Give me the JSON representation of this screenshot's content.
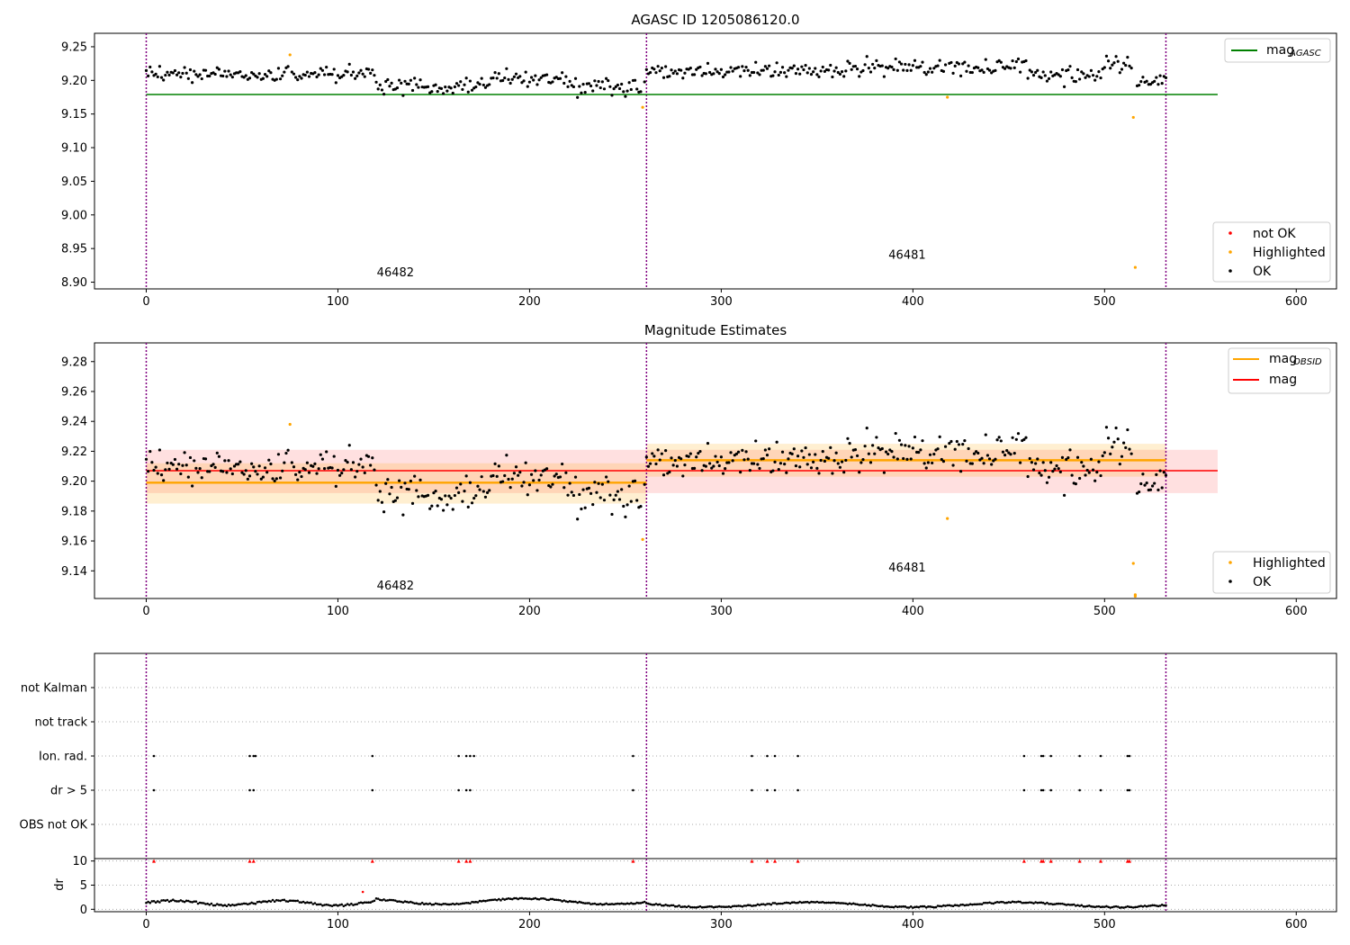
{
  "figure": {
    "title": "AGASC ID 1205086120.0"
  },
  "chart_data": [
    {
      "type": "scatter",
      "name": "agasc-mag-panel",
      "title": "AGASC ID 1205086120.0",
      "xlim": [
        -27,
        621
      ],
      "ylim": [
        8.89,
        9.27
      ],
      "xticks": [
        0,
        100,
        200,
        300,
        400,
        500,
        600
      ],
      "yticks": [
        8.9,
        8.95,
        9.0,
        9.05,
        9.1,
        9.15,
        9.2,
        9.25
      ],
      "ytick_labels": [
        "8.90",
        "8.95",
        "9.00",
        "9.05",
        "9.10",
        "9.15",
        "9.20",
        "9.25"
      ],
      "obsid_boundaries": [
        0,
        261,
        532
      ],
      "obsid_labels": [
        {
          "text": "46482",
          "x": 130,
          "y": 8.9085
        },
        {
          "text": "46481",
          "x": 397,
          "y": 8.935
        }
      ],
      "lines": [
        {
          "label": "mag",
          "sub": "AGASC",
          "color": "#008000",
          "x": [
            0,
            559
          ],
          "y": [
            9.179,
            9.179
          ]
        }
      ],
      "highlighted": [
        [
          75,
          9.238
        ],
        [
          259,
          9.16
        ],
        [
          418,
          9.175
        ],
        [
          515,
          9.145
        ],
        [
          516,
          8.922
        ]
      ],
      "not_ok": [],
      "legend": {
        "lines": [
          {
            "label": "mag",
            "sub": "AGASC",
            "color": "#008000"
          }
        ],
        "points": [
          {
            "label": "not OK",
            "color": "#ff0000"
          },
          {
            "label": "Highlighted",
            "color": "#ffa500"
          },
          {
            "label": "OK",
            "color": "#000000"
          }
        ]
      }
    },
    {
      "type": "scatter",
      "name": "magnitude-estimates-panel",
      "title": "Magnitude Estimates",
      "xlim": [
        -27,
        621
      ],
      "ylim": [
        9.1215,
        9.2925
      ],
      "xticks": [
        0,
        100,
        200,
        300,
        400,
        500,
        600
      ],
      "yticks": [
        9.14,
        9.16,
        9.18,
        9.2,
        9.22,
        9.24,
        9.26,
        9.28
      ],
      "ytick_labels": [
        "9.14",
        "9.16",
        "9.18",
        "9.20",
        "9.22",
        "9.24",
        "9.26",
        "9.28"
      ],
      "obsid_boundaries": [
        0,
        261,
        532
      ],
      "obsid_labels": [
        {
          "text": "46482",
          "x": 130,
          "y": 9.1275
        },
        {
          "text": "46481",
          "x": 397,
          "y": 9.1395
        }
      ],
      "bands": [
        {
          "color": "#ff0000",
          "opacity": 0.12,
          "x": [
            0,
            559
          ],
          "y": [
            9.192,
            9.221
          ]
        },
        {
          "color": "#ffa500",
          "opacity": 0.18,
          "x": [
            0,
            261
          ],
          "y": [
            9.185,
            9.212
          ]
        },
        {
          "color": "#ffa500",
          "opacity": 0.18,
          "x": [
            261,
            532
          ],
          "y": [
            9.203,
            9.225
          ]
        }
      ],
      "lines": [
        {
          "label": "mag",
          "color": "#ff0000",
          "x": [
            0,
            559
          ],
          "y": [
            9.207,
            9.207
          ]
        },
        {
          "label": "mag",
          "sub": "OBSID",
          "color": "#ffa500",
          "x": [
            0,
            261
          ],
          "y": [
            9.199,
            9.199
          ]
        },
        {
          "label": "mag",
          "sub": "OBSID",
          "color": "#ffa500",
          "x": [
            261,
            532
          ],
          "y": [
            9.214,
            9.214
          ]
        }
      ],
      "highlighted": [
        [
          75,
          9.238
        ],
        [
          259,
          9.161
        ],
        [
          418,
          9.175
        ],
        [
          515,
          9.145
        ],
        [
          516,
          9.124
        ],
        [
          516,
          9.123
        ]
      ],
      "legend_top": {
        "lines": [
          {
            "label": "mag",
            "sub": "OBSID",
            "color": "#ffa500"
          },
          {
            "label": "mag",
            "color": "#ff0000"
          }
        ]
      },
      "legend_bottom": {
        "points": [
          {
            "label": "Highlighted",
            "color": "#ffa500"
          },
          {
            "label": "OK",
            "color": "#000000"
          }
        ]
      }
    },
    {
      "type": "scatter",
      "name": "flags-panel",
      "xlim": [
        -27,
        621
      ],
      "categories": [
        "OBS not OK",
        "dr > 5",
        "Ion. rad.",
        "not track",
        "not Kalman"
      ],
      "obsid_boundaries": [
        0,
        261,
        532
      ],
      "flag_x": [
        4,
        54,
        56,
        118,
        163,
        167,
        169,
        254,
        316,
        324,
        328,
        340,
        458,
        467,
        468,
        472,
        487,
        498,
        512,
        513
      ],
      "ion_only_x": [
        57,
        171
      ],
      "dr_only_x": []
    },
    {
      "type": "scatter",
      "name": "dr-panel",
      "ylabel": "dr",
      "xlim": [
        -27,
        621
      ],
      "ylim": [
        -0.5,
        10.5
      ],
      "xticks": [
        0,
        100,
        200,
        300,
        400,
        500,
        600
      ],
      "yticks": [
        0,
        5,
        10
      ],
      "ytick_labels": [
        "0",
        "5",
        "10"
      ],
      "obsid_boundaries": [
        0,
        261,
        532
      ],
      "flag_x": [
        4,
        54,
        56,
        118,
        163,
        167,
        169,
        254,
        316,
        324,
        328,
        340,
        458,
        467,
        468,
        472,
        487,
        498,
        512,
        513
      ],
      "outliers": [
        [
          113,
          3.6
        ]
      ]
    }
  ]
}
